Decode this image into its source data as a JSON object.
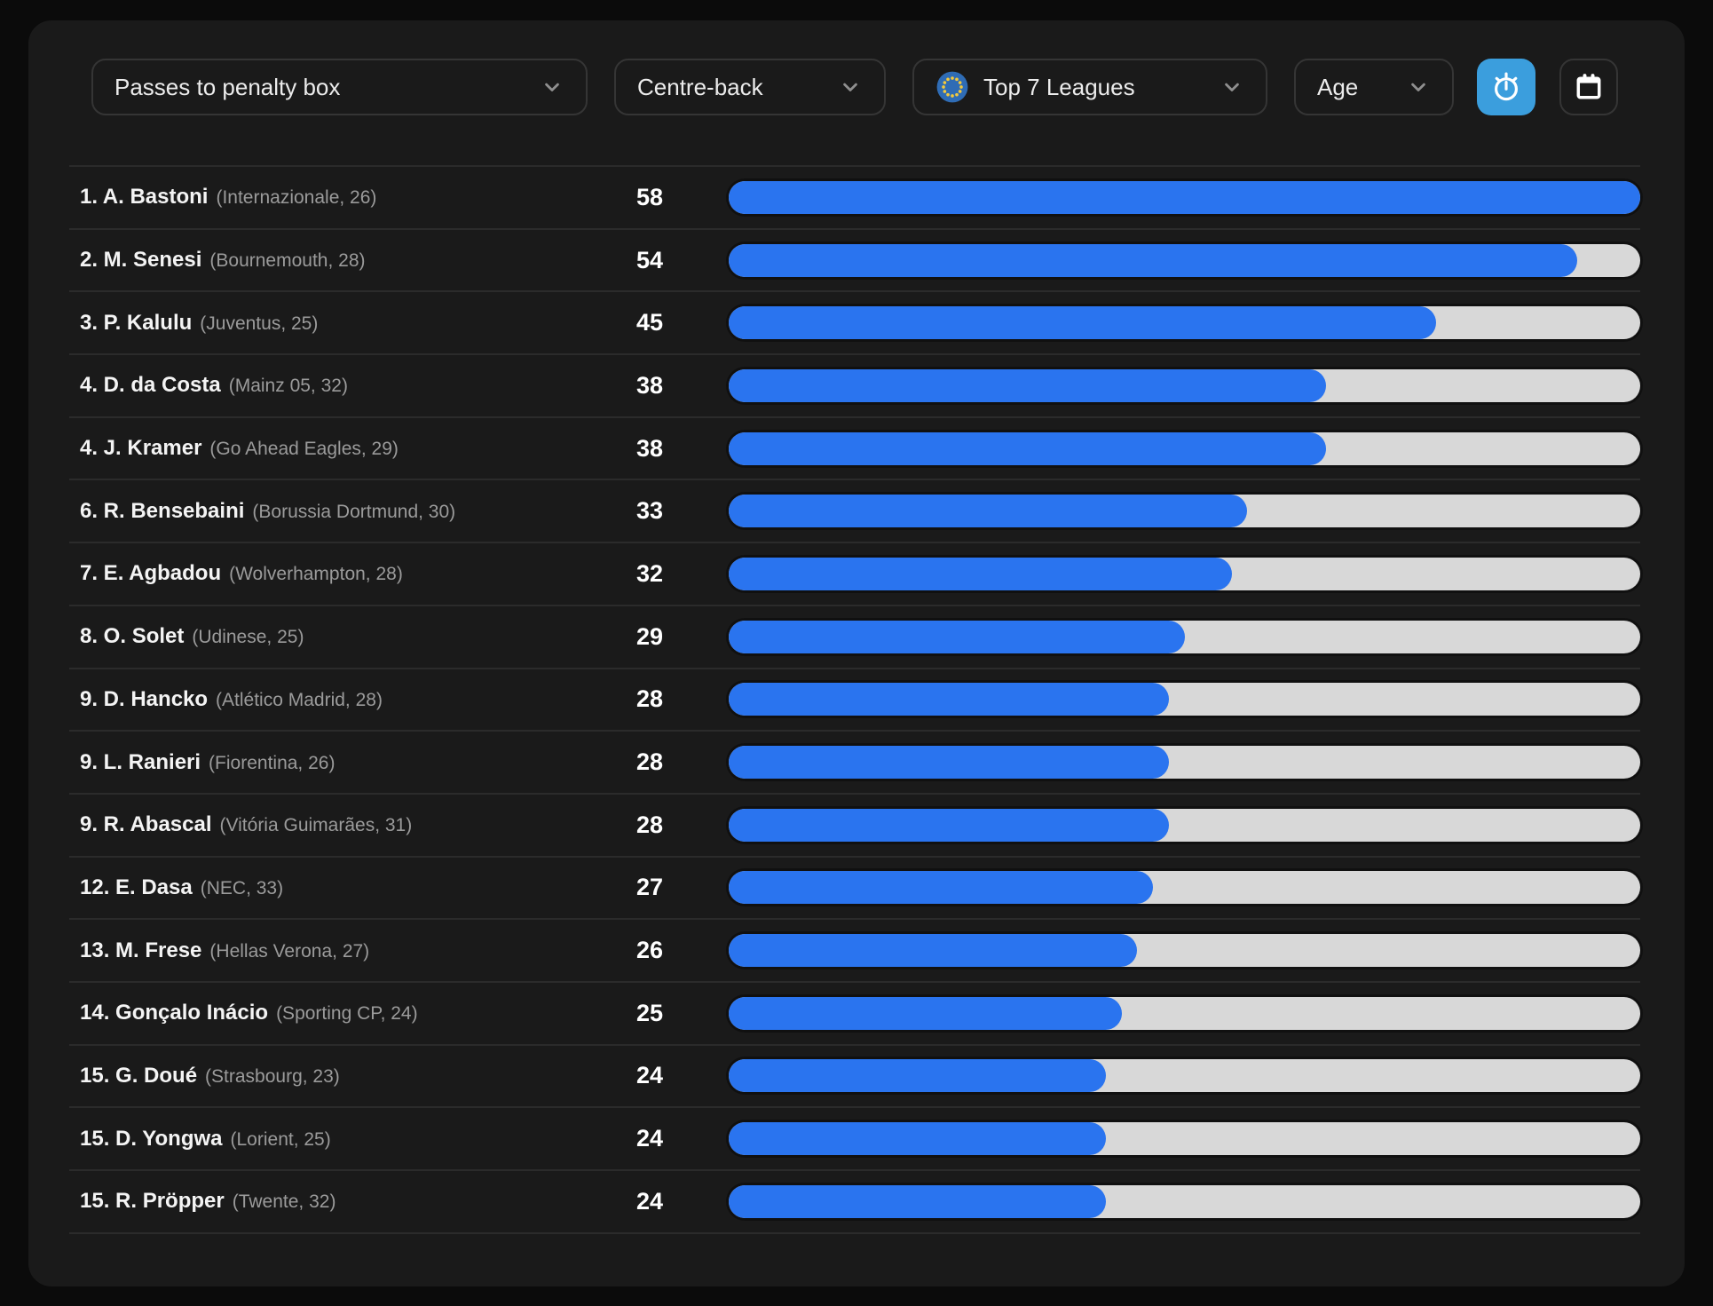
{
  "toolbar": {
    "metric_label": "Passes to penalty box",
    "position_label": "Centre-back",
    "league_label": "Top 7 Leagues",
    "age_label": "Age"
  },
  "icons": {
    "league_flag": "eu-flag-icon",
    "timer_button": "stopwatch-icon",
    "calendar_button": "calendar-icon",
    "dropdown_arrow": "chevron-down-icon"
  },
  "colors": {
    "page_background": "#0b0b0b",
    "card_background": "#1a1a1a",
    "bar_fill_blue": "#2a74ef",
    "bar_track_gray": "#d8d8d8",
    "active_button_blue": "#3b9edd",
    "eu_flag_blue": "#2f6cb5",
    "eu_star_yellow": "#f3c93d"
  },
  "leaderboard": {
    "max_value": 58,
    "players": [
      {
        "rank": "1.",
        "name": "A. Bastoni",
        "team": "Internazionale",
        "age": 26,
        "value": 58
      },
      {
        "rank": "2.",
        "name": "M. Senesi",
        "team": "Bournemouth",
        "age": 28,
        "value": 54
      },
      {
        "rank": "3.",
        "name": "P. Kalulu",
        "team": "Juventus",
        "age": 25,
        "value": 45
      },
      {
        "rank": "4.",
        "name": "D. da Costa",
        "team": "Mainz 05",
        "age": 32,
        "value": 38
      },
      {
        "rank": "4.",
        "name": "J. Kramer",
        "team": "Go Ahead Eagles",
        "age": 29,
        "value": 38
      },
      {
        "rank": "6.",
        "name": "R. Bensebaini",
        "team": "Borussia Dortmund",
        "age": 30,
        "value": 33
      },
      {
        "rank": "7.",
        "name": "E. Agbadou",
        "team": "Wolverhampton",
        "age": 28,
        "value": 32
      },
      {
        "rank": "8.",
        "name": "O. Solet",
        "team": "Udinese",
        "age": 25,
        "value": 29
      },
      {
        "rank": "9.",
        "name": "D. Hancko",
        "team": "Atlético Madrid",
        "age": 28,
        "value": 28
      },
      {
        "rank": "9.",
        "name": "L. Ranieri",
        "team": "Fiorentina",
        "age": 26,
        "value": 28
      },
      {
        "rank": "9.",
        "name": "R. Abascal",
        "team": "Vitória Guimarães",
        "age": 31,
        "value": 28
      },
      {
        "rank": "12.",
        "name": "E. Dasa",
        "team": "NEC",
        "age": 33,
        "value": 27
      },
      {
        "rank": "13.",
        "name": "M. Frese",
        "team": "Hellas Verona",
        "age": 27,
        "value": 26
      },
      {
        "rank": "14.",
        "name": "Gonçalo Inácio",
        "team": "Sporting CP",
        "age": 24,
        "value": 25
      },
      {
        "rank": "15.",
        "name": "G. Doué",
        "team": "Strasbourg",
        "age": 23,
        "value": 24
      },
      {
        "rank": "15.",
        "name": "D. Yongwa",
        "team": "Lorient",
        "age": 25,
        "value": 24
      },
      {
        "rank": "15.",
        "name": "R. Pröpper",
        "team": "Twente",
        "age": 32,
        "value": 24
      }
    ]
  },
  "chart_data": {
    "type": "bar",
    "title": "Passes to penalty box",
    "categories": [
      "A. Bastoni",
      "M. Senesi",
      "P. Kalulu",
      "D. da Costa",
      "J. Kramer",
      "R. Bensebaini",
      "E. Agbadou",
      "O. Solet",
      "D. Hancko",
      "L. Ranieri",
      "R. Abascal",
      "E. Dasa",
      "M. Frese",
      "Gonçalo Inácio",
      "G. Doué",
      "D. Yongwa",
      "R. Pröpper"
    ],
    "values": [
      58,
      54,
      45,
      38,
      38,
      33,
      32,
      29,
      28,
      28,
      28,
      27,
      26,
      25,
      24,
      24,
      24
    ],
    "xlim": [
      0,
      58
    ],
    "orientation": "horizontal"
  }
}
